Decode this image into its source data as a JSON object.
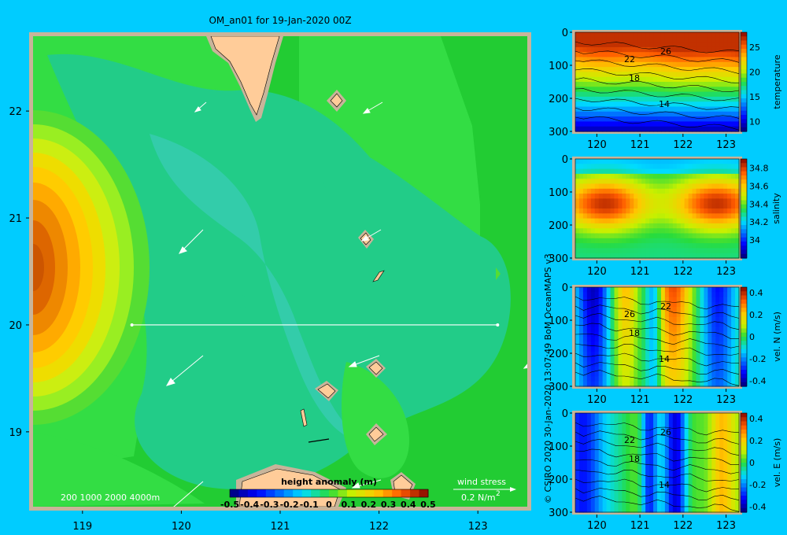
{
  "title": "OM_an01 for 19-Jan-2020 00Z",
  "credit": "© CSIRO 2020   30-Jan-2020 13:07:49 BoM OceanMAPS v3",
  "colors": {
    "background": "#00ccff",
    "frame": "#c8b49a",
    "land": "#ffcc99",
    "map_base": "#22cc33"
  },
  "map": {
    "x_ticks": [
      "119",
      "120",
      "121",
      "122",
      "123"
    ],
    "y_ticks": [
      "22",
      "21",
      "20",
      "19"
    ],
    "depth_legend": "200  1000  2000  4000m",
    "wind_label": "wind stress",
    "wind_value": "0.2 N/m",
    "wind_exp": "2",
    "colorbar": {
      "label": "height anomaly (m)",
      "ticks": [
        "-0.5",
        "-0.4",
        "-0.3",
        "-0.2",
        "-0.1",
        "0",
        "0.1",
        "0.2",
        "0.3",
        "0.4",
        "0.5"
      ]
    }
  },
  "chart_data": [
    {
      "type": "heatmap",
      "name": "map",
      "variable": "height anomaly (m)",
      "xlim": [
        118.5,
        123.5
      ],
      "ylim": [
        18.3,
        22.7
      ],
      "crlim": [
        -0.5,
        0.5
      ],
      "section": {
        "lat": 20.0,
        "lon_range": [
          119.5,
          123.2
        ]
      }
    },
    {
      "type": "heatmap",
      "name": "temperature",
      "xlim": [
        119.5,
        123.3
      ],
      "ylim": [
        300,
        0
      ],
      "crlim": [
        8,
        28
      ],
      "x_ticks": [
        "120",
        "121",
        "122",
        "123"
      ],
      "y_ticks": [
        "0",
        "100",
        "200",
        "300"
      ],
      "cbar_ticks": [
        "25",
        "20",
        "15",
        "10"
      ],
      "cbar_label": "temperature",
      "contour_labels": [
        "22",
        "26",
        "18",
        "14"
      ]
    },
    {
      "type": "heatmap",
      "name": "salinity",
      "xlim": [
        119.5,
        123.3
      ],
      "ylim": [
        300,
        0
      ],
      "crlim": [
        33.8,
        34.9
      ],
      "x_ticks": [
        "120",
        "121",
        "122",
        "123"
      ],
      "y_ticks": [
        "0",
        "100",
        "200",
        "300"
      ],
      "cbar_ticks": [
        "34.8",
        "34.6",
        "34.4",
        "34.2",
        "34"
      ],
      "cbar_label": "salinity",
      "contour_labels": []
    },
    {
      "type": "heatmap",
      "name": "velN",
      "xlim": [
        119.5,
        123.3
      ],
      "ylim": [
        300,
        0
      ],
      "crlim": [
        -0.45,
        0.45
      ],
      "x_ticks": [
        "120",
        "121",
        "122",
        "123"
      ],
      "y_ticks": [
        "0",
        "100",
        "200",
        "300"
      ],
      "cbar_ticks": [
        "0.4",
        "0.2",
        "0",
        "-0.2",
        "-0.4"
      ],
      "cbar_label": "vel. N (m/s)",
      "contour_labels": [
        "26",
        "22",
        "18",
        "14"
      ]
    },
    {
      "type": "heatmap",
      "name": "velE",
      "xlim": [
        119.5,
        123.3
      ],
      "ylim": [
        300,
        0
      ],
      "crlim": [
        -0.45,
        0.45
      ],
      "x_ticks": [
        "120",
        "121",
        "122",
        "123"
      ],
      "y_ticks": [
        "0",
        "100",
        "200",
        "300"
      ],
      "cbar_ticks": [
        "0.4",
        "0.2",
        "0",
        "-0.2",
        "-0.4"
      ],
      "cbar_label": "vel. E (m/s)",
      "contour_labels": [
        "22",
        "26",
        "18",
        "14"
      ]
    }
  ]
}
